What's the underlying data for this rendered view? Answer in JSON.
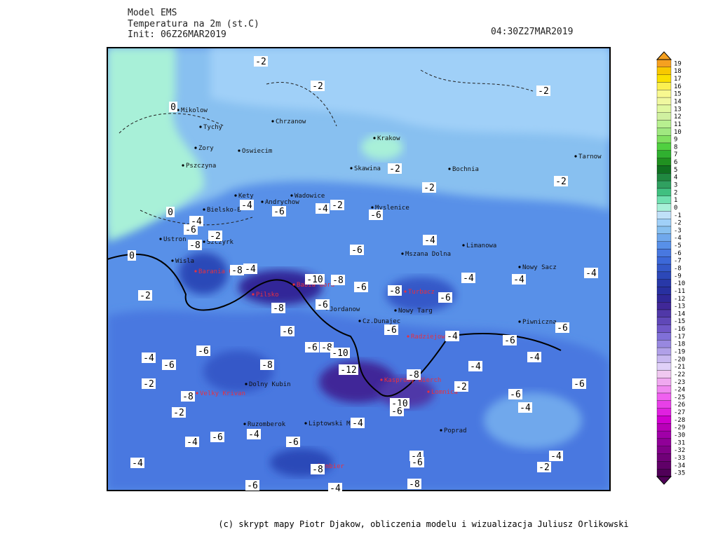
{
  "header": {
    "lines": [
      "Model EMS",
      "Temperatura na 2m (st.C)",
      "Init: 06Z26MAR2019"
    ],
    "valid_time": "04:30Z27MAR2019"
  },
  "footer": "(c) skrypt mapy Piotr Djakow, obliczenia modelu i wizualizacja Juliusz Orlikowski",
  "colorbar": {
    "levels": [
      19,
      18,
      17,
      16,
      15,
      14,
      13,
      12,
      11,
      10,
      9,
      8,
      7,
      6,
      5,
      4,
      3,
      2,
      1,
      0,
      -1,
      -2,
      -3,
      -4,
      -5,
      -6,
      -7,
      -8,
      -9,
      -10,
      -11,
      -12,
      -13,
      -14,
      -15,
      -16,
      -17,
      -18,
      -19,
      -20,
      -21,
      -22,
      -23,
      -24,
      -25,
      -26,
      -27,
      -28,
      -29,
      -30,
      -31,
      -32,
      -33,
      -34,
      -35
    ],
    "colors": [
      "#f5a020",
      "#f8c800",
      "#fae000",
      "#fbf050",
      "#f8f890",
      "#f0f8a0",
      "#e0f8a0",
      "#d0f0a0",
      "#b8f090",
      "#a0e880",
      "#80e060",
      "#50d040",
      "#30b030",
      "#209020",
      "#107020",
      "#208840",
      "#30a060",
      "#40c080",
      "#70e0b0",
      "#a8f0d8",
      "#c0e0f8",
      "#a0d0f8",
      "#88c0f0",
      "#70a8ec",
      "#5890e8",
      "#4878e0",
      "#3c68d8",
      "#3458c8",
      "#2c48b8",
      "#2838a8",
      "#2830a0",
      "#302898",
      "#402898",
      "#5038a8",
      "#6048b8",
      "#7058c8",
      "#8070d8",
      "#9888e0",
      "#b0a0e8",
      "#c8b8f0",
      "#e0d0f8",
      "#f0c8f0",
      "#f0a8f0",
      "#f088f0",
      "#f060f0",
      "#e840e8",
      "#e020e0",
      "#d000d0",
      "#b800b8",
      "#a000a8",
      "#900098",
      "#800088",
      "#700078",
      "#600068",
      "#500058"
    ]
  },
  "cities": [
    "Mikolow",
    "Tychy",
    "Zory",
    "Oswiecim",
    "Chrzanow",
    "Krakow",
    "Tarnow",
    "Pszczyna",
    "Skawina",
    "Bochnia",
    "Kety",
    "Wadowice",
    "Andrychow",
    "Bielsko-B",
    "Myslenice",
    "Limanowa",
    "Ustron",
    "Szczyrk",
    "Wisla",
    "Mszana Dolna",
    "Nowy Sacz",
    "Jordanow",
    "Nowy Targ",
    "Cz.Dunajec",
    "Piwniczna",
    "Dolny Kubin",
    "Ruzomberok",
    "Liptowski Mik",
    "Poprad"
  ],
  "peaks": [
    "Barania Gora",
    "Pilsko",
    "Babia Gora",
    "Turbacz",
    "Radziejowa",
    "Kasprowy Wierch",
    "Velky Krivan",
    "Lomnica",
    "Dumbier"
  ],
  "contour_labels": [
    -2,
    -2,
    -2,
    0,
    -2,
    -2,
    -2,
    -4,
    -6,
    -4,
    -2,
    -6,
    -4,
    -6,
    -2,
    -8,
    -6,
    -4,
    0,
    -8,
    -4,
    -10,
    -8,
    -6,
    -8,
    -4,
    -4,
    -4,
    -2,
    -8,
    -6,
    -6,
    -6,
    -6,
    -4,
    -6,
    -6,
    -6,
    -8,
    -10,
    -6,
    -4,
    -6,
    -8,
    -12,
    -4,
    -4,
    -8,
    -2,
    -6,
    -2,
    -8,
    -6,
    -2,
    -10,
    -6,
    -4,
    -4,
    -6,
    -4,
    -6,
    -4,
    -4,
    -6,
    -4,
    -2,
    -4,
    -8,
    -6,
    -8,
    -4,
    0
  ]
}
